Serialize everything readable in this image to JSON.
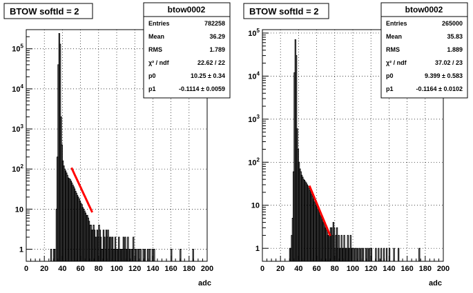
{
  "chart_data": [
    {
      "type": "histogram",
      "title": "BTOW softId = 2",
      "xlabel": "adc",
      "ylabel": "",
      "xlim": [
        0,
        200
      ],
      "ylim": [
        0.5,
        300000
      ],
      "yscale": "log",
      "grid": true,
      "x_ticks": [
        "0",
        "20",
        "40",
        "60",
        "80",
        "100",
        "120",
        "140",
        "160",
        "180",
        "200"
      ],
      "y_ticks": [
        "1",
        "10",
        "10^2",
        "10^3",
        "10^4",
        "10^5"
      ],
      "stats": {
        "name": "btow0002",
        "rows": [
          {
            "label": "Entries",
            "value": "782258"
          },
          {
            "label": "Mean",
            "value": "36.29"
          },
          {
            "label": "RMS",
            "value": "1.789"
          },
          {
            "label": "χ² / ndf",
            "value": "22.62 / 22"
          },
          {
            "label": "p0",
            "value": "10.25 ± 0.34"
          },
          {
            "label": "p1",
            "value": "-0.1114 ± 0.0059"
          }
        ]
      },
      "fit": {
        "function": "expo",
        "p0": 10.25,
        "p1": -0.1114,
        "range": [
          50,
          73
        ],
        "color": "#ff0000"
      },
      "bins": [
        [
          26,
          0.5
        ],
        [
          27,
          1
        ],
        [
          28,
          0.5
        ],
        [
          30,
          1
        ],
        [
          31,
          1
        ],
        [
          33,
          10
        ],
        [
          34,
          200
        ],
        [
          35,
          40000
        ],
        [
          36,
          240000
        ],
        [
          37,
          130000
        ],
        [
          38,
          2000
        ],
        [
          39,
          400
        ],
        [
          40,
          160
        ],
        [
          41,
          120
        ],
        [
          42,
          100
        ],
        [
          43,
          90
        ],
        [
          44,
          80
        ],
        [
          45,
          70
        ],
        [
          46,
          60
        ],
        [
          47,
          58
        ],
        [
          48,
          55
        ],
        [
          49,
          50
        ],
        [
          50,
          45
        ],
        [
          51,
          40
        ],
        [
          52,
          36
        ],
        [
          53,
          32
        ],
        [
          54,
          28
        ],
        [
          55,
          25
        ],
        [
          56,
          22
        ],
        [
          57,
          20
        ],
        [
          58,
          18
        ],
        [
          59,
          16
        ],
        [
          60,
          14
        ],
        [
          61,
          13
        ],
        [
          62,
          11
        ],
        [
          63,
          10
        ],
        [
          64,
          9
        ],
        [
          65,
          8
        ],
        [
          66,
          7
        ],
        [
          67,
          7
        ],
        [
          68,
          6
        ],
        [
          69,
          5
        ],
        [
          70,
          4
        ],
        [
          71,
          4
        ],
        [
          72,
          3
        ],
        [
          73,
          3
        ],
        [
          74,
          4
        ],
        [
          75,
          3
        ],
        [
          76,
          2
        ],
        [
          77,
          2
        ],
        [
          78,
          3
        ],
        [
          79,
          2
        ],
        [
          80,
          4
        ],
        [
          81,
          3
        ],
        [
          82,
          2
        ],
        [
          83,
          1
        ],
        [
          84,
          1
        ],
        [
          85,
          3
        ],
        [
          86,
          2
        ],
        [
          87,
          1
        ],
        [
          88,
          3
        ],
        [
          89,
          2
        ],
        [
          90,
          3
        ],
        [
          91,
          1
        ],
        [
          92,
          2
        ],
        [
          93,
          2
        ],
        [
          94,
          1
        ],
        [
          95,
          2
        ],
        [
          96,
          1
        ],
        [
          97,
          1
        ],
        [
          98,
          2
        ],
        [
          99,
          1
        ],
        [
          100,
          1
        ],
        [
          101,
          1
        ],
        [
          102,
          2
        ],
        [
          103,
          1
        ],
        [
          104,
          1
        ],
        [
          105,
          1
        ],
        [
          106,
          1
        ],
        [
          107,
          2
        ],
        [
          108,
          1
        ],
        [
          109,
          2
        ],
        [
          110,
          1
        ],
        [
          111,
          1
        ],
        [
          112,
          2
        ],
        [
          113,
          1
        ],
        [
          114,
          1
        ],
        [
          116,
          1
        ],
        [
          117,
          1
        ],
        [
          118,
          2
        ],
        [
          120,
          1
        ],
        [
          122,
          1
        ],
        [
          124,
          1
        ],
        [
          126,
          1
        ],
        [
          129,
          1
        ],
        [
          131,
          1
        ],
        [
          134,
          1
        ],
        [
          136,
          1
        ],
        [
          139,
          1
        ],
        [
          141,
          1
        ],
        [
          160,
          1
        ],
        [
          170,
          1
        ],
        [
          184,
          1
        ]
      ]
    },
    {
      "type": "histogram",
      "title": "BTOW softId = 2",
      "xlabel": "adc",
      "ylabel": "",
      "xlim": [
        0,
        200
      ],
      "ylim": [
        0.5,
        120000
      ],
      "yscale": "log",
      "grid": true,
      "x_ticks": [
        "0",
        "20",
        "40",
        "60",
        "80",
        "100",
        "120",
        "140",
        "160",
        "180",
        "200"
      ],
      "y_ticks": [
        "1",
        "10",
        "10^2",
        "10^3",
        "10^4",
        "10^5"
      ],
      "stats": {
        "name": "btow0002",
        "rows": [
          {
            "label": "Entries",
            "value": "265000"
          },
          {
            "label": "Mean",
            "value": "35.83"
          },
          {
            "label": "RMS",
            "value": "1.889"
          },
          {
            "label": "χ² / ndf",
            "value": "37.02 / 23"
          },
          {
            "label": "p0",
            "value": "9.399 ± 0.583"
          },
          {
            "label": "p1",
            "value": "-0.1164 ± 0.0102"
          }
        ]
      },
      "fit": {
        "function": "expo",
        "p0": 9.399,
        "p1": -0.1164,
        "range": [
          52,
          75
        ],
        "color": "#ff0000"
      },
      "bins": [
        [
          30,
          1
        ],
        [
          31,
          1
        ],
        [
          32,
          2
        ],
        [
          33,
          5
        ],
        [
          34,
          60
        ],
        [
          35,
          12000
        ],
        [
          36,
          70000
        ],
        [
          37,
          30000
        ],
        [
          38,
          600
        ],
        [
          39,
          200
        ],
        [
          40,
          100
        ],
        [
          41,
          70
        ],
        [
          42,
          60
        ],
        [
          43,
          50
        ],
        [
          44,
          45
        ],
        [
          45,
          40
        ],
        [
          46,
          38
        ],
        [
          47,
          35
        ],
        [
          48,
          33
        ],
        [
          49,
          30
        ],
        [
          50,
          28
        ],
        [
          51,
          25
        ],
        [
          52,
          22
        ],
        [
          53,
          20
        ],
        [
          54,
          18
        ],
        [
          55,
          16
        ],
        [
          56,
          14
        ],
        [
          57,
          12
        ],
        [
          58,
          11
        ],
        [
          59,
          10
        ],
        [
          60,
          9
        ],
        [
          61,
          8
        ],
        [
          62,
          8
        ],
        [
          63,
          7
        ],
        [
          64,
          6
        ],
        [
          65,
          6
        ],
        [
          66,
          5
        ],
        [
          67,
          4
        ],
        [
          68,
          4
        ],
        [
          69,
          3
        ],
        [
          70,
          3
        ],
        [
          71,
          3
        ],
        [
          72,
          2
        ],
        [
          73,
          2
        ],
        [
          74,
          2
        ],
        [
          75,
          3
        ],
        [
          76,
          3
        ],
        [
          77,
          2
        ],
        [
          78,
          4
        ],
        [
          79,
          3
        ],
        [
          80,
          1
        ],
        [
          81,
          2
        ],
        [
          82,
          3
        ],
        [
          83,
          1
        ],
        [
          84,
          2
        ],
        [
          85,
          1
        ],
        [
          86,
          1
        ],
        [
          87,
          2
        ],
        [
          88,
          1
        ],
        [
          89,
          1
        ],
        [
          90,
          2
        ],
        [
          91,
          1
        ],
        [
          92,
          1
        ],
        [
          93,
          1
        ],
        [
          94,
          2
        ],
        [
          95,
          1
        ],
        [
          96,
          1
        ],
        [
          97,
          2
        ],
        [
          98,
          1
        ],
        [
          99,
          1
        ],
        [
          100,
          1
        ],
        [
          102,
          1
        ],
        [
          103,
          1
        ],
        [
          105,
          1
        ],
        [
          107,
          1
        ],
        [
          109,
          1
        ],
        [
          111,
          1
        ],
        [
          114,
          1
        ],
        [
          116,
          1
        ],
        [
          118,
          1
        ],
        [
          120,
          1
        ],
        [
          125,
          1
        ],
        [
          128,
          1
        ],
        [
          131,
          1
        ],
        [
          134,
          1
        ],
        [
          137,
          1
        ],
        [
          140,
          1
        ],
        [
          145,
          1
        ],
        [
          150,
          1
        ],
        [
          173,
          1
        ]
      ]
    }
  ]
}
